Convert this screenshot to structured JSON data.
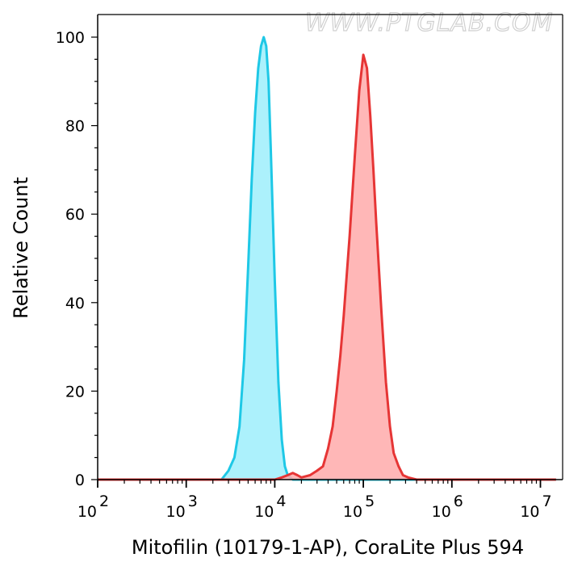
{
  "watermark": "WWW.PTGLAB.COM",
  "chart_data": {
    "type": "area",
    "xlabel": "Mitofilin (10179-1-AP), CoraLite Plus 594",
    "ylabel": "Relative Count",
    "x_scale": "log",
    "xlim": [
      60,
      15000000
    ],
    "ylim": [
      0,
      105
    ],
    "y_ticks": [
      0,
      20,
      40,
      60,
      80,
      100
    ],
    "x_ticks": [
      {
        "value": 100,
        "base": "10",
        "exp": "2"
      },
      {
        "value": 1000,
        "base": "10",
        "exp": "3"
      },
      {
        "value": 10000,
        "base": "10",
        "exp": "4"
      },
      {
        "value": 100000,
        "base": "10",
        "exp": "5"
      },
      {
        "value": 1000000,
        "base": "10",
        "exp": "6"
      },
      {
        "value": 10000000,
        "base": "10",
        "exp": "7"
      }
    ],
    "grid": false,
    "series": [
      {
        "color": "#1ec8e6",
        "fill": "#9deefb",
        "x": [
          60,
          2500,
          3000,
          3500,
          4000,
          4500,
          5000,
          5500,
          6000,
          6500,
          7000,
          7500,
          8000,
          8500,
          9000,
          10000,
          11000,
          12000,
          13000,
          14000,
          16000,
          20000,
          15000000
        ],
        "y": [
          0,
          0,
          2,
          5,
          12,
          27,
          48,
          68,
          83,
          93,
          98,
          100,
          98,
          90,
          75,
          45,
          22,
          9,
          3,
          1,
          0,
          0,
          0
        ]
      },
      {
        "color": "#e63535",
        "fill": "#ffaaaa",
        "x": [
          60,
          10000,
          12000,
          14000,
          16000,
          18000,
          20000,
          25000,
          30000,
          35000,
          40000,
          45000,
          50000,
          55000,
          60000,
          70000,
          80000,
          90000,
          100000,
          110000,
          120000,
          130000,
          140000,
          160000,
          180000,
          200000,
          220000,
          250000,
          280000,
          320000,
          400000,
          15000000
        ],
        "y": [
          0,
          0,
          0.5,
          1,
          1.5,
          1,
          0.5,
          1,
          2,
          3,
          7,
          12,
          20,
          28,
          37,
          55,
          73,
          88,
          96,
          93,
          82,
          70,
          58,
          38,
          22,
          12,
          6,
          3,
          1,
          0.5,
          0,
          0
        ]
      }
    ]
  }
}
